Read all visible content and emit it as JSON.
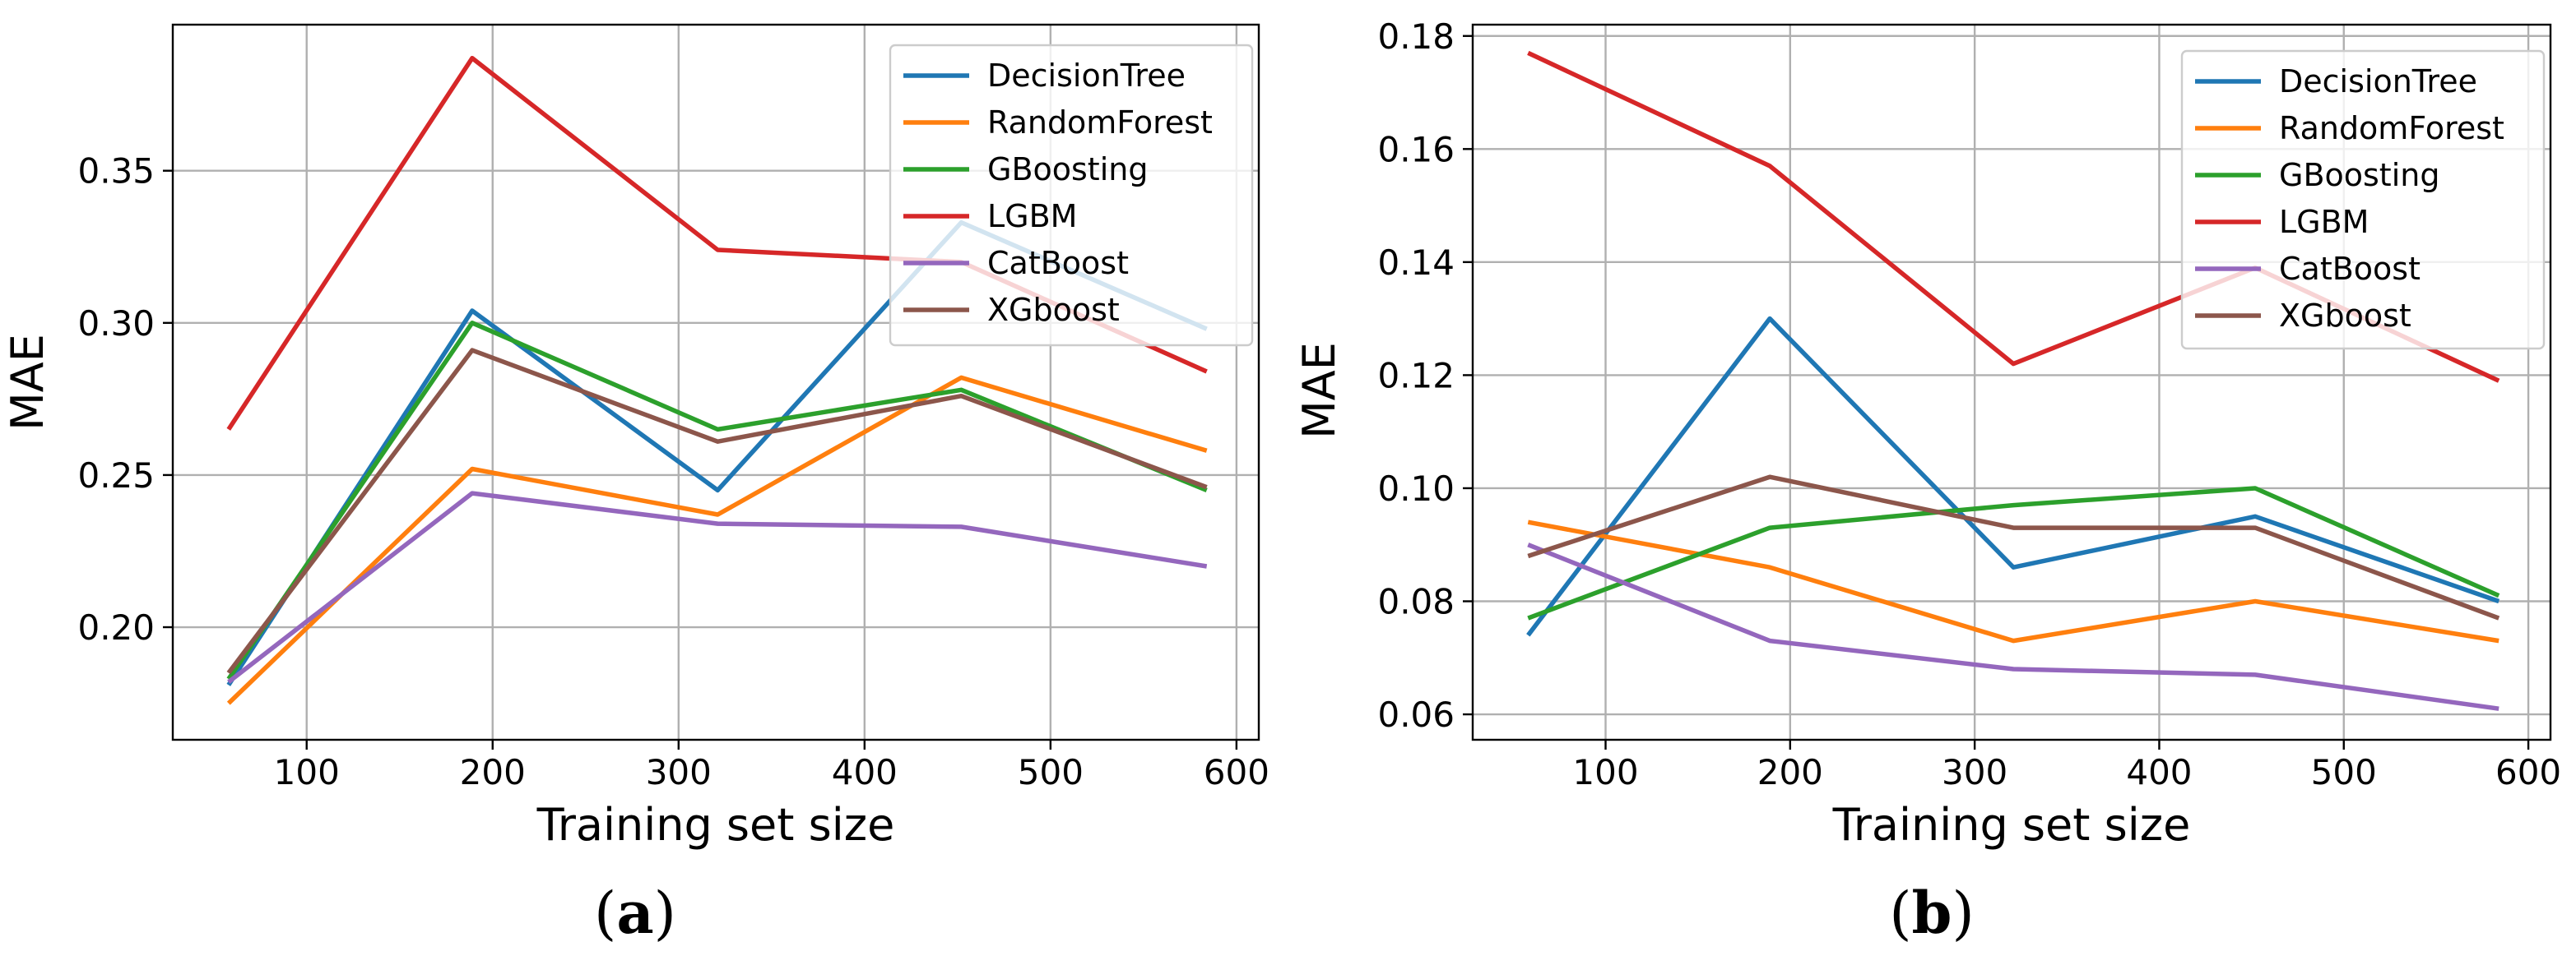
{
  "chart_data": [
    {
      "type": "line",
      "panel_label": "a",
      "xlabel": "Training set size",
      "ylabel": "MAE",
      "xlim": [
        28,
        612
      ],
      "ylim": [
        0.163,
        0.398
      ],
      "xticks": [
        100,
        200,
        300,
        400,
        500,
        600
      ],
      "yticks": [
        0.2,
        0.25,
        0.3,
        0.35
      ],
      "ytick_labels": [
        "0.20",
        "0.25",
        "0.30",
        "0.35"
      ],
      "grid": true,
      "legend_position": "top-right",
      "x": [
        58,
        189,
        321,
        452,
        584
      ],
      "series": [
        {
          "name": "DecisionTree",
          "color": "#1f77b4",
          "values": [
            0.181,
            0.304,
            0.245,
            0.333,
            0.298
          ]
        },
        {
          "name": "RandomForest",
          "color": "#ff7f0e",
          "values": [
            0.175,
            0.252,
            0.237,
            0.282,
            0.258
          ]
        },
        {
          "name": "GBoosting",
          "color": "#2ca02c",
          "values": [
            0.183,
            0.3,
            0.265,
            0.278,
            0.245
          ]
        },
        {
          "name": "LGBM",
          "color": "#d62728",
          "values": [
            0.265,
            0.387,
            0.324,
            0.32,
            0.284
          ]
        },
        {
          "name": "CatBoost",
          "color": "#9467bd",
          "values": [
            0.182,
            0.244,
            0.234,
            0.233,
            0.22
          ]
        },
        {
          "name": "XGboost",
          "color": "#8c564b",
          "values": [
            0.185,
            0.291,
            0.261,
            0.276,
            0.246
          ]
        }
      ]
    },
    {
      "type": "line",
      "panel_label": "b",
      "xlabel": "Training set size",
      "ylabel": "MAE",
      "xlim": [
        28,
        612
      ],
      "ylim": [
        0.0555,
        0.182
      ],
      "xticks": [
        100,
        200,
        300,
        400,
        500,
        600
      ],
      "yticks": [
        0.06,
        0.08,
        0.1,
        0.12,
        0.14,
        0.16,
        0.18
      ],
      "ytick_labels": [
        "0.06",
        "0.08",
        "0.10",
        "0.12",
        "0.14",
        "0.16",
        "0.18"
      ],
      "grid": true,
      "legend_position": "top-right",
      "x": [
        58,
        189,
        321,
        452,
        584
      ],
      "series": [
        {
          "name": "DecisionTree",
          "color": "#1f77b4",
          "values": [
            0.074,
            0.13,
            0.086,
            0.095,
            0.08
          ]
        },
        {
          "name": "RandomForest",
          "color": "#ff7f0e",
          "values": [
            0.094,
            0.086,
            0.073,
            0.08,
            0.073
          ]
        },
        {
          "name": "GBoosting",
          "color": "#2ca02c",
          "values": [
            0.077,
            0.093,
            0.097,
            0.1,
            0.081
          ]
        },
        {
          "name": "LGBM",
          "color": "#d62728",
          "values": [
            0.177,
            0.157,
            0.122,
            0.139,
            0.119
          ]
        },
        {
          "name": "CatBoost",
          "color": "#9467bd",
          "values": [
            0.09,
            0.073,
            0.068,
            0.067,
            0.061
          ]
        },
        {
          "name": "XGboost",
          "color": "#8c564b",
          "values": [
            0.088,
            0.102,
            0.093,
            0.093,
            0.077
          ]
        }
      ]
    }
  ]
}
